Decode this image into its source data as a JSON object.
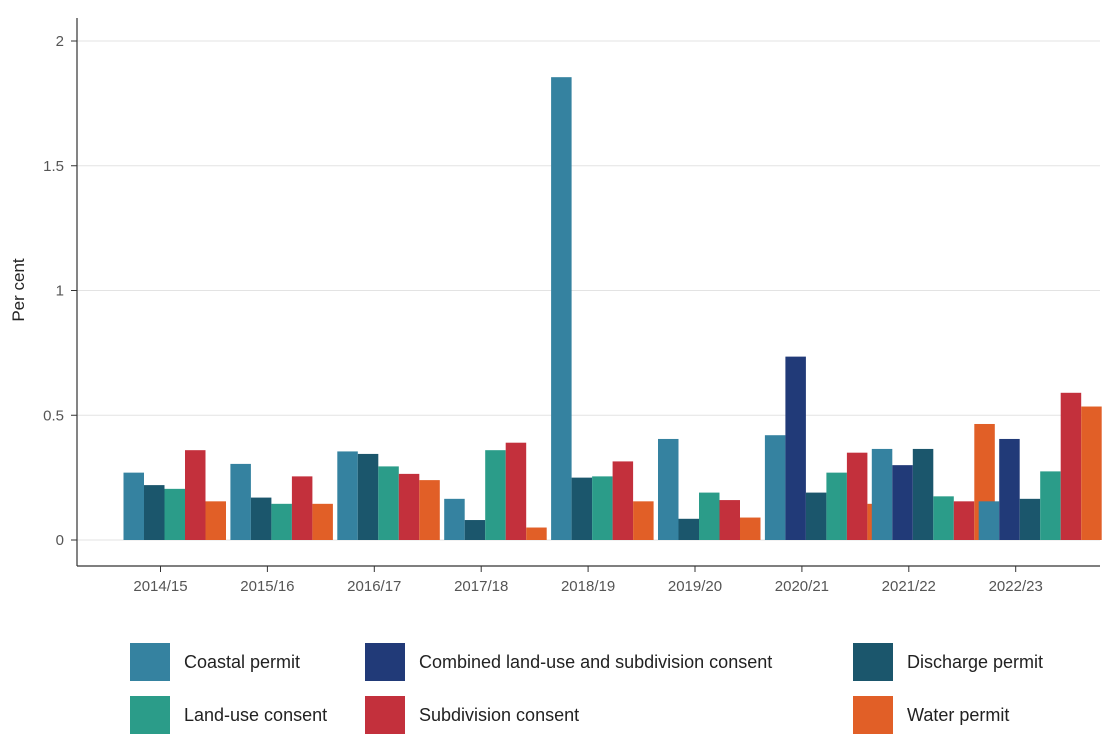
{
  "chart_data": {
    "type": "bar",
    "title": "",
    "xlabel": "",
    "ylabel": "Per cent",
    "ylim": [
      0,
      2.1
    ],
    "yticks": [
      "0",
      "0.5",
      "1",
      "1.5",
      "2"
    ],
    "grid": "horizontal",
    "legend_position": "bottom",
    "categories": [
      "2014/15",
      "2015/16",
      "2016/17",
      "2017/18",
      "2018/19",
      "2019/20",
      "2020/21",
      "2021/22",
      "2022/23"
    ],
    "series": [
      {
        "name": "Coastal permit",
        "color": "#3582A0",
        "values": [
          0.27,
          0.305,
          0.355,
          0.165,
          1.855,
          0.405,
          0.42,
          0.365,
          0.155
        ]
      },
      {
        "name": "Combined land-use and subdivision consent",
        "color": "#213A78",
        "values": [
          null,
          null,
          null,
          null,
          null,
          null,
          0.735,
          0.3,
          0.405
        ]
      },
      {
        "name": "Discharge permit",
        "color": "#1B566C",
        "values": [
          0.22,
          0.17,
          0.345,
          0.08,
          0.25,
          0.085,
          0.19,
          0.365,
          0.165
        ]
      },
      {
        "name": "Land-use consent",
        "color": "#2B9C89",
        "values": [
          0.205,
          0.145,
          0.295,
          0.36,
          0.255,
          0.19,
          0.27,
          0.175,
          0.275
        ]
      },
      {
        "name": "Subdivision consent",
        "color": "#C3303C",
        "values": [
          0.36,
          0.255,
          0.265,
          0.39,
          0.315,
          0.16,
          0.35,
          0.155,
          0.59
        ]
      },
      {
        "name": "Water permit",
        "color": "#E15F27",
        "values": [
          0.155,
          0.145,
          0.24,
          0.05,
          0.155,
          0.09,
          0.145,
          0.465,
          0.535
        ]
      }
    ]
  }
}
